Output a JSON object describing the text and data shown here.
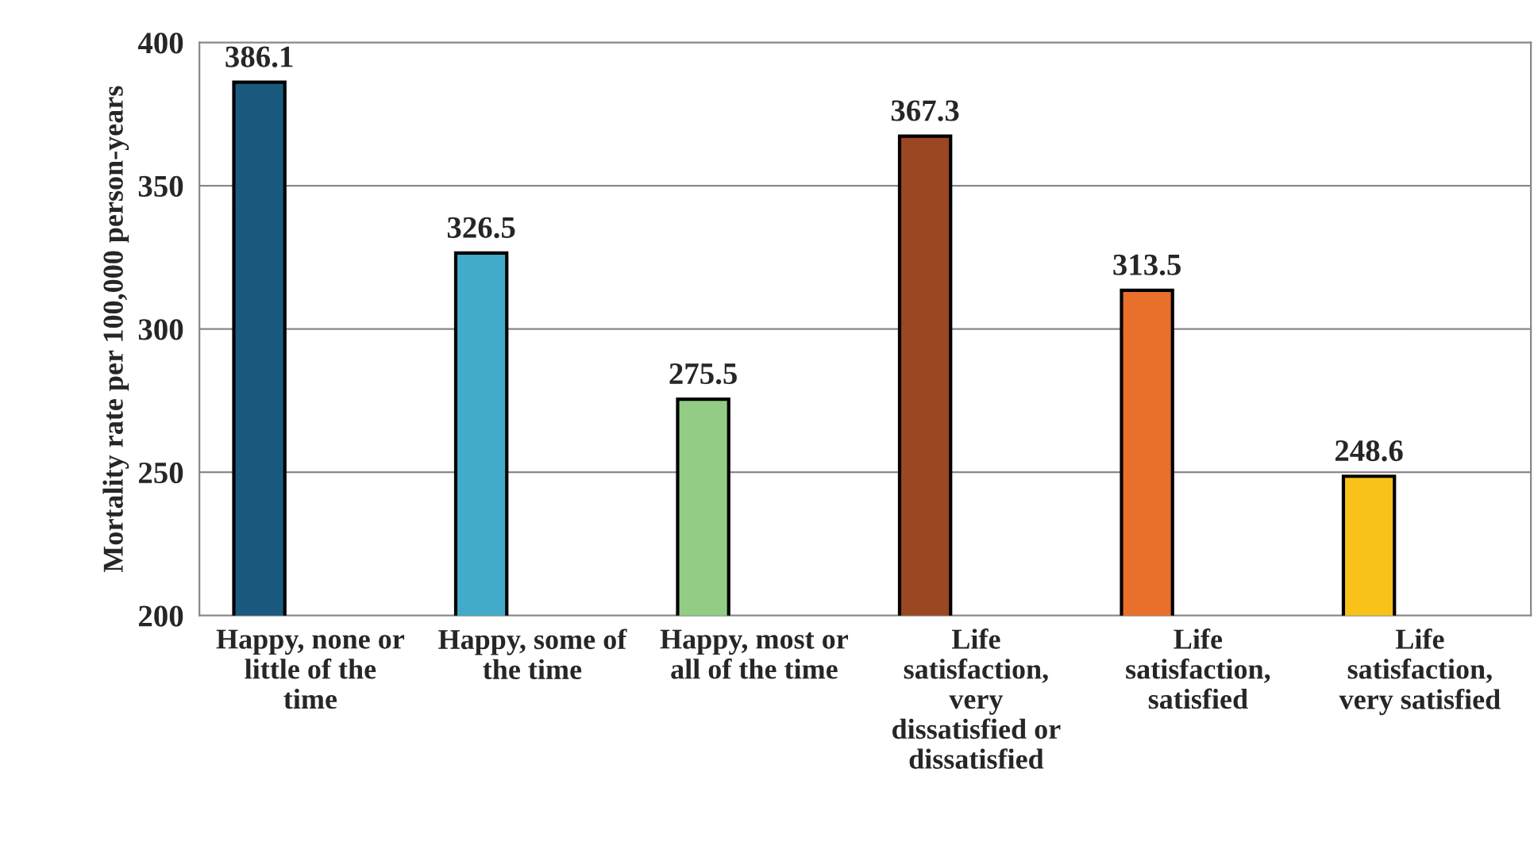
{
  "chart_data": {
    "type": "bar",
    "ylabel": "Mortality rate per 100,000 person-years",
    "categories": [
      "Happy, none or little of the time",
      "Happy, some of the time",
      "Happy, most or all of the time",
      "Life satisfaction, very dissatisfied or dissatisfied",
      "Life satisfaction, satisfied",
      "Life satisfaction, very satisfied"
    ],
    "values": [
      386.1,
      326.5,
      275.5,
      367.3,
      313.5,
      248.6
    ],
    "colors": [
      "#1a5a7e",
      "#42abc9",
      "#93cd85",
      "#9b4722",
      "#e8702a",
      "#f8c21a"
    ],
    "ylim": [
      200,
      400
    ],
    "yticks": [
      200,
      250,
      300,
      350,
      400
    ],
    "grid": "y",
    "data_labels": true
  }
}
